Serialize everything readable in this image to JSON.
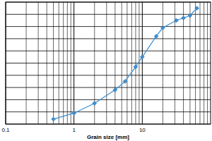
{
  "chart_data": {
    "type": "line",
    "x_label": "Grain size [mm]",
    "x": [
      0.5,
      1,
      2,
      4,
      5.6,
      8,
      10,
      16,
      20,
      31.5,
      40,
      50,
      63
    ],
    "values": [
      4,
      9,
      17,
      28,
      35,
      47,
      55,
      72,
      79,
      85,
      87,
      89,
      95
    ],
    "color": "#3d8fd1",
    "marker": "diamond",
    "line_style": "solid",
    "xlim": [
      0.1,
      100
    ],
    "xticks": [
      0.1,
      1,
      10
    ],
    "ylim": [
      0,
      100
    ],
    "yticks": [
      0,
      10,
      20,
      30,
      40,
      50,
      60,
      70,
      80,
      90,
      100
    ],
    "log": "x",
    "grid": true,
    "tick_labels": "x"
  }
}
